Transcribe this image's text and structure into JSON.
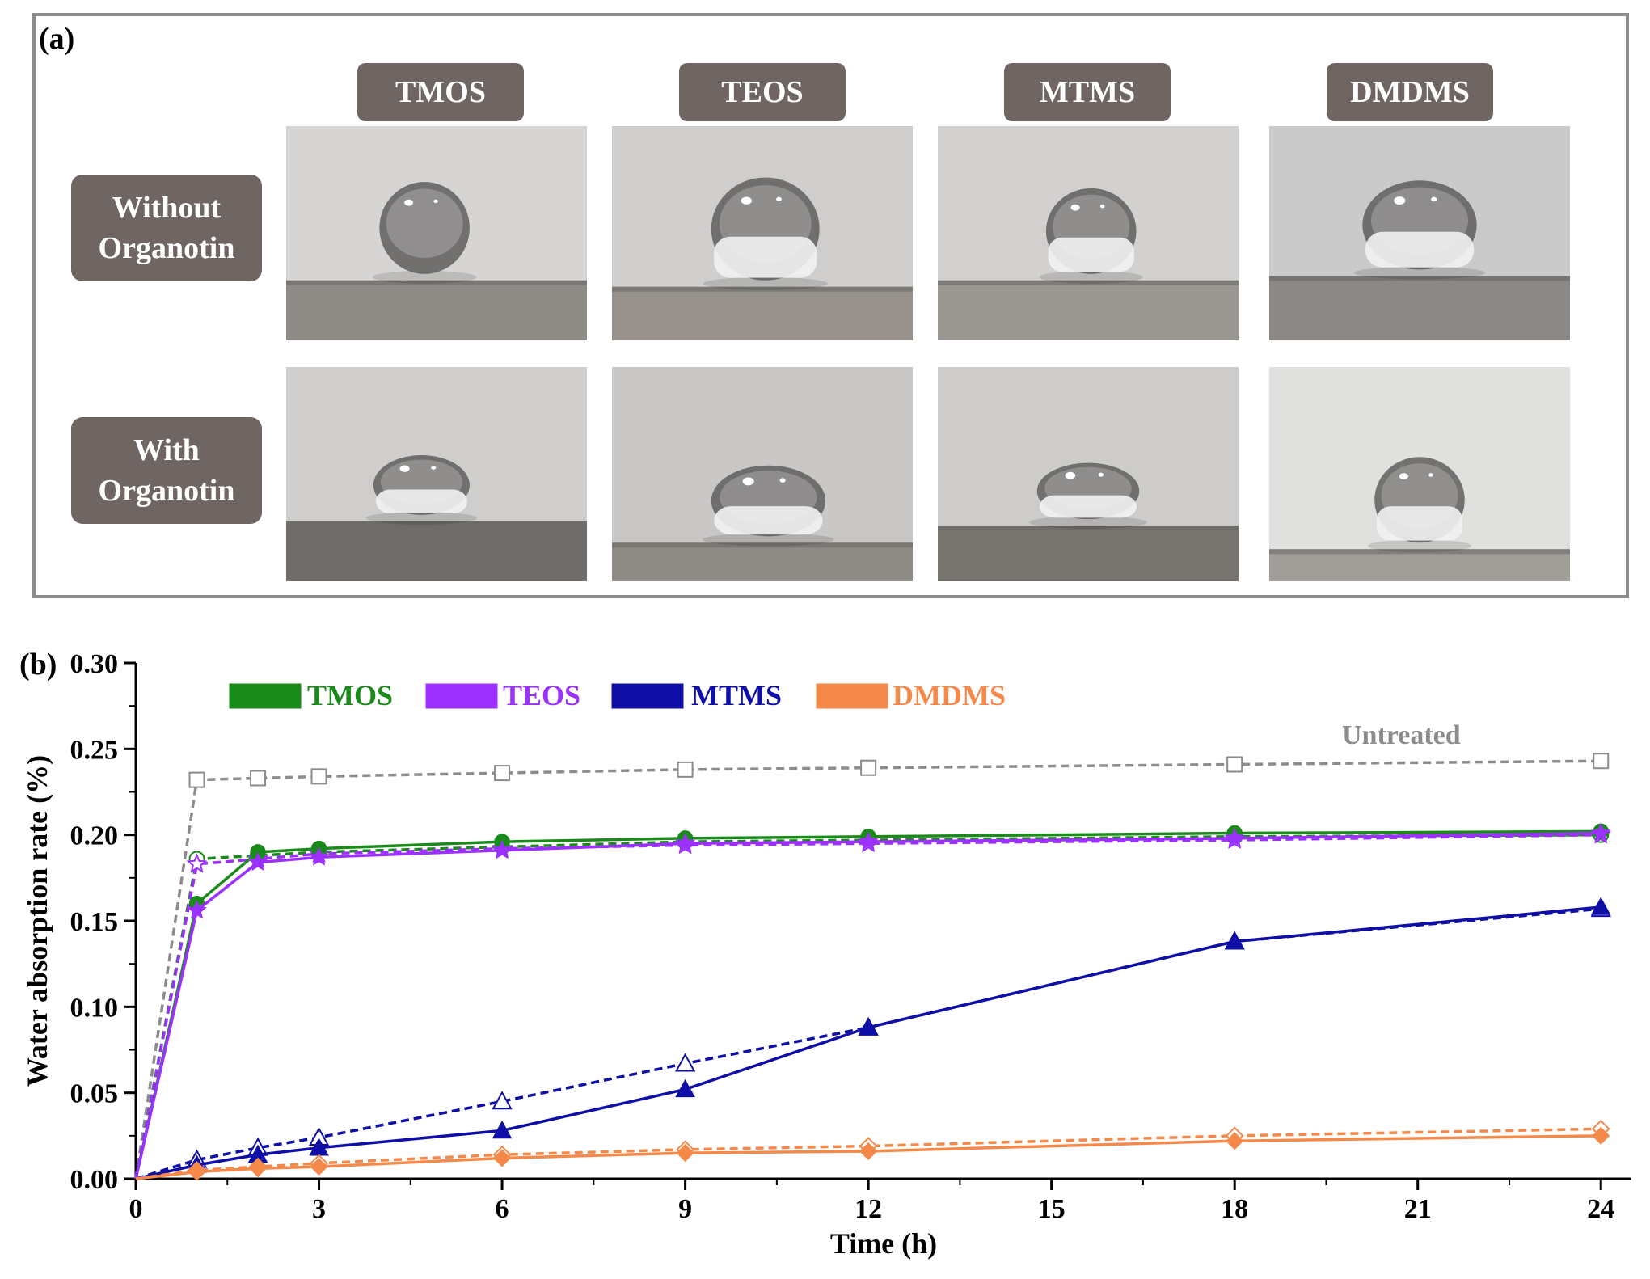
{
  "panel_a": {
    "label": "(a)",
    "columns": [
      "TMOS",
      "TEOS",
      "MTMS",
      "DMDMS"
    ],
    "rows": [
      "Without\nOrganotin",
      "With\nOrganotin"
    ]
  },
  "colors": {
    "TMOS": "#1a8a1a",
    "TEOS": "#9b30ff",
    "MTMS": "#0f0fa8",
    "DMDMS": "#f5894a",
    "Untreated": "#8c8c8c"
  },
  "chart_data": {
    "type": "line",
    "panel_label": "(b)",
    "xlabel": "Time (h)",
    "ylabel": "Water absorption rate (%)",
    "xlim": [
      0,
      24.5
    ],
    "ylim": [
      0,
      0.3
    ],
    "xticks": [
      "0",
      "3",
      "6",
      "9",
      "12",
      "15",
      "18",
      "21",
      "24"
    ],
    "yticks": [
      "0.00",
      "0.05",
      "0.10",
      "0.15",
      "0.20",
      "0.25",
      "0.30"
    ],
    "legend": [
      "TMOS",
      "TEOS",
      "MTMS",
      "DMDMS"
    ],
    "annotation": "Untreated",
    "x": [
      0,
      1,
      2,
      3,
      6,
      9,
      12,
      18,
      24
    ],
    "series": [
      {
        "name": "Untreated",
        "color": "#8c8c8c",
        "dashed": true,
        "marker": "square-open",
        "values": [
          0,
          0.232,
          0.233,
          0.234,
          0.236,
          0.238,
          0.239,
          0.241,
          0.243
        ]
      },
      {
        "name": "TMOS (with organotin)",
        "color": "#1a8a1a",
        "dashed": true,
        "marker": "circle-open",
        "values": [
          0,
          0.186,
          0.188,
          0.19,
          0.193,
          0.196,
          0.197,
          0.199,
          0.2
        ]
      },
      {
        "name": "TEOS (with organotin)",
        "color": "#9b30ff",
        "dashed": true,
        "marker": "star-open",
        "values": [
          0,
          0.183,
          0.186,
          0.189,
          0.192,
          0.194,
          0.195,
          0.197,
          0.2
        ]
      },
      {
        "name": "TMOS (without organotin)",
        "color": "#1a8a1a",
        "dashed": false,
        "marker": "circle",
        "values": [
          0,
          0.16,
          0.19,
          0.192,
          0.196,
          0.198,
          0.199,
          0.201,
          0.202
        ]
      },
      {
        "name": "TEOS (without organotin)",
        "color": "#9b30ff",
        "dashed": false,
        "marker": "star",
        "values": [
          0,
          0.156,
          0.184,
          0.187,
          0.191,
          0.195,
          0.196,
          0.198,
          0.201
        ]
      },
      {
        "name": "MTMS (with organotin)",
        "color": "#0f0fa8",
        "dashed": true,
        "marker": "triangle-open",
        "values": [
          0,
          0.011,
          0.018,
          0.024,
          0.045,
          0.067,
          0.088,
          0.138,
          0.157
        ]
      },
      {
        "name": "MTMS (without organotin)",
        "color": "#0f0fa8",
        "dashed": false,
        "marker": "triangle",
        "values": [
          0,
          0.008,
          0.014,
          0.018,
          0.028,
          0.052,
          0.088,
          0.138,
          0.158
        ]
      },
      {
        "name": "DMDMS (with organotin)",
        "color": "#f5894a",
        "dashed": true,
        "marker": "diamond-open",
        "values": [
          0,
          0.005,
          0.007,
          0.009,
          0.014,
          0.017,
          0.019,
          0.025,
          0.029
        ]
      },
      {
        "name": "DMDMS (without organotin)",
        "color": "#f5894a",
        "dashed": false,
        "marker": "diamond",
        "values": [
          0,
          0.004,
          0.006,
          0.007,
          0.012,
          0.015,
          0.016,
          0.022,
          0.025
        ]
      }
    ]
  }
}
